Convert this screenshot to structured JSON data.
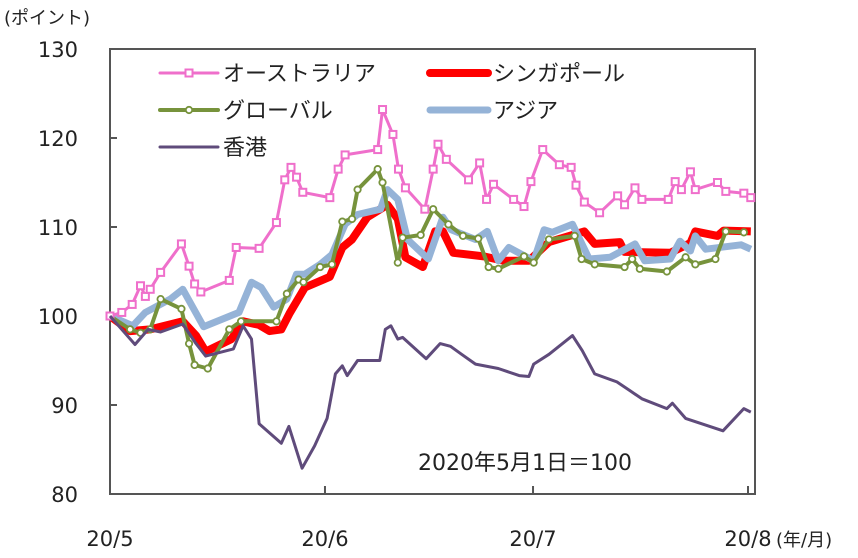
{
  "chart_data": {
    "type": "line",
    "unit_label": "(ポイント)",
    "xlabel": "(年/月)",
    "annotation": "2020年5月1日＝100",
    "xlim": [
      0,
      92
    ],
    "ylim": [
      80,
      130
    ],
    "y_ticks": [
      80,
      90,
      100,
      110,
      120,
      130
    ],
    "x_ticks": [
      {
        "day": 0,
        "label": "20/5"
      },
      {
        "day": 31,
        "label": "20/6"
      },
      {
        "day": 61,
        "label": "20/7"
      },
      {
        "day": 92,
        "label": "20/8"
      }
    ],
    "x_unit": "days since 2020-05-01",
    "legend_placement": "top-left",
    "series": [
      {
        "name": "オーストラリア",
        "color": "#ef6fcb",
        "marker": "square",
        "points": [
          [
            0,
            100
          ],
          [
            1.7,
            100.4
          ],
          [
            3.2,
            101.3
          ],
          [
            4.4,
            103.4
          ],
          [
            5.1,
            102.2
          ],
          [
            5.8,
            103.0
          ],
          [
            7.3,
            104.9
          ],
          [
            10.3,
            108.1
          ],
          [
            11.4,
            105.6
          ],
          [
            12.2,
            103.6
          ],
          [
            13.1,
            102.7
          ],
          [
            17.2,
            104.0
          ],
          [
            18.2,
            107.7
          ],
          [
            21.5,
            107.6
          ],
          [
            24.0,
            110.5
          ],
          [
            25.2,
            115.3
          ],
          [
            26.1,
            116.7
          ],
          [
            26.9,
            115.6
          ],
          [
            27.8,
            113.9
          ],
          [
            31.7,
            113.3
          ],
          [
            32.9,
            116.5
          ],
          [
            33.9,
            118.1
          ],
          [
            38.6,
            118.7
          ],
          [
            39.3,
            123.2
          ],
          [
            40.8,
            120.4
          ],
          [
            41.6,
            116.5
          ],
          [
            42.6,
            114.4
          ],
          [
            45.4,
            112.0
          ],
          [
            46.6,
            116.5
          ],
          [
            47.3,
            119.3
          ],
          [
            48.5,
            117.6
          ],
          [
            51.7,
            115.3
          ],
          [
            53.3,
            117.2
          ],
          [
            54.3,
            113.1
          ],
          [
            55.3,
            114.8
          ],
          [
            58.2,
            113.1
          ],
          [
            59.7,
            112.3
          ],
          [
            60.7,
            115.1
          ],
          [
            62.4,
            118.7
          ],
          [
            64.8,
            117.0
          ],
          [
            66.5,
            116.7
          ],
          [
            67.2,
            114.7
          ],
          [
            68.4,
            112.8
          ],
          [
            70.6,
            111.6
          ],
          [
            73.2,
            113.5
          ],
          [
            74.2,
            112.5
          ],
          [
            75.7,
            114.4
          ],
          [
            76.7,
            113.1
          ],
          [
            80.5,
            113.1
          ],
          [
            81.5,
            115.1
          ],
          [
            82.4,
            114.2
          ],
          [
            83.7,
            116.2
          ],
          [
            84.4,
            114.2
          ],
          [
            87.6,
            115.0
          ],
          [
            88.8,
            114.0
          ],
          [
            91.4,
            113.8
          ],
          [
            92.4,
            113.3
          ]
        ]
      },
      {
        "name": "シンガポール",
        "color": "#ff0000",
        "marker": "none",
        "points": [
          [
            0,
            100
          ],
          [
            2.9,
            98.3
          ],
          [
            5.8,
            98.5
          ],
          [
            10.5,
            99.4
          ],
          [
            12.4,
            97.8
          ],
          [
            13.8,
            96.0
          ],
          [
            17.5,
            97.4
          ],
          [
            19.2,
            99.4
          ],
          [
            21.5,
            99.0
          ],
          [
            23.0,
            98.3
          ],
          [
            24.7,
            98.5
          ],
          [
            25.9,
            100.3
          ],
          [
            28.1,
            103.2
          ],
          [
            31.7,
            104.4
          ],
          [
            33.5,
            107.7
          ],
          [
            34.9,
            108.6
          ],
          [
            37.1,
            111.1
          ],
          [
            40.0,
            112.5
          ],
          [
            41.5,
            110.9
          ],
          [
            42.6,
            106.6
          ],
          [
            45.1,
            105.5
          ],
          [
            46.9,
            109.5
          ],
          [
            48.0,
            109.5
          ],
          [
            49.5,
            107.1
          ],
          [
            53.9,
            106.7
          ],
          [
            56.8,
            106.2
          ],
          [
            60.4,
            106.2
          ],
          [
            63.3,
            108.3
          ],
          [
            68.4,
            109.5
          ],
          [
            69.9,
            108.1
          ],
          [
            73.5,
            108.3
          ],
          [
            74.2,
            107.2
          ],
          [
            80.8,
            107.1
          ],
          [
            83.7,
            108.2
          ],
          [
            84.4,
            109.5
          ],
          [
            87.6,
            109.0
          ],
          [
            88.5,
            109.6
          ],
          [
            92.4,
            109.5
          ]
        ]
      },
      {
        "name": "グローバル",
        "color": "#77933c",
        "marker": "circle",
        "points": [
          [
            0,
            100
          ],
          [
            2.9,
            98.5
          ],
          [
            4.4,
            98.1
          ],
          [
            5.8,
            98.5
          ],
          [
            7.3,
            101.9
          ],
          [
            10.3,
            100.8
          ],
          [
            11.4,
            96.9
          ],
          [
            12.2,
            94.5
          ],
          [
            14.1,
            94.1
          ],
          [
            17.2,
            98.5
          ],
          [
            18.9,
            99.4
          ],
          [
            24.0,
            99.4
          ],
          [
            25.5,
            102.5
          ],
          [
            27.2,
            104.1
          ],
          [
            27.9,
            103.8
          ],
          [
            30.3,
            105.5
          ],
          [
            32.0,
            105.8
          ],
          [
            33.5,
            110.6
          ],
          [
            34.9,
            110.9
          ],
          [
            35.7,
            114.2
          ],
          [
            38.6,
            116.5
          ],
          [
            39.3,
            115.0
          ],
          [
            41.5,
            106.0
          ],
          [
            42.2,
            108.8
          ],
          [
            44.8,
            109.1
          ],
          [
            46.6,
            112.0
          ],
          [
            48.8,
            110.3
          ],
          [
            50.9,
            109.0
          ],
          [
            53.1,
            108.7
          ],
          [
            54.6,
            105.5
          ],
          [
            56.0,
            105.3
          ],
          [
            59.7,
            106.7
          ],
          [
            61.1,
            106.0
          ],
          [
            63.3,
            108.6
          ],
          [
            67.0,
            109.0
          ],
          [
            68.0,
            106.4
          ],
          [
            69.9,
            105.8
          ],
          [
            74.2,
            105.5
          ],
          [
            75.3,
            106.4
          ],
          [
            76.4,
            105.3
          ],
          [
            80.3,
            105.0
          ],
          [
            83.0,
            106.6
          ],
          [
            84.4,
            105.8
          ],
          [
            87.3,
            106.4
          ],
          [
            88.8,
            109.5
          ],
          [
            91.4,
            109.4
          ]
        ]
      },
      {
        "name": "アジア",
        "color": "#95b3d7",
        "marker": "none",
        "points": [
          [
            0,
            100
          ],
          [
            3.3,
            98.9
          ],
          [
            5.1,
            100.4
          ],
          [
            8.7,
            101.9
          ],
          [
            10.5,
            103.0
          ],
          [
            13.5,
            98.8
          ],
          [
            18.6,
            100.4
          ],
          [
            20.4,
            103.8
          ],
          [
            21.8,
            103.2
          ],
          [
            23.6,
            101.0
          ],
          [
            25.5,
            101.9
          ],
          [
            26.9,
            104.7
          ],
          [
            28.1,
            104.7
          ],
          [
            30.3,
            105.8
          ],
          [
            32.0,
            106.9
          ],
          [
            33.9,
            110.3
          ],
          [
            35.7,
            111.4
          ],
          [
            39.0,
            112.0
          ],
          [
            40.0,
            114.2
          ],
          [
            41.5,
            113.1
          ],
          [
            42.9,
            108.6
          ],
          [
            45.9,
            106.4
          ],
          [
            48.0,
            111.1
          ],
          [
            49.2,
            109.7
          ],
          [
            52.7,
            108.6
          ],
          [
            54.4,
            109.5
          ],
          [
            56.0,
            106.2
          ],
          [
            57.5,
            107.7
          ],
          [
            61.1,
            106.2
          ],
          [
            62.6,
            109.7
          ],
          [
            63.8,
            109.4
          ],
          [
            66.7,
            110.3
          ],
          [
            69.1,
            106.4
          ],
          [
            72.1,
            106.6
          ],
          [
            75.7,
            108.1
          ],
          [
            77.1,
            106.2
          ],
          [
            80.8,
            106.4
          ],
          [
            82.2,
            108.4
          ],
          [
            83.7,
            107.3
          ],
          [
            84.4,
            109.0
          ],
          [
            85.9,
            107.5
          ],
          [
            91.0,
            108.0
          ],
          [
            92.4,
            107.5
          ]
        ]
      },
      {
        "name": "香港",
        "color": "#5f4b7b",
        "marker": "none",
        "points": [
          [
            0,
            100
          ],
          [
            3.6,
            96.8
          ],
          [
            5.5,
            98.5
          ],
          [
            7.3,
            98.2
          ],
          [
            10.5,
            99.1
          ],
          [
            12.4,
            96.9
          ],
          [
            13.8,
            95.5
          ],
          [
            17.8,
            96.3
          ],
          [
            19.2,
            98.9
          ],
          [
            20.4,
            97.4
          ],
          [
            21.5,
            87.9
          ],
          [
            24.7,
            85.7
          ],
          [
            25.8,
            87.6
          ],
          [
            27.7,
            82.9
          ],
          [
            29.5,
            85.4
          ],
          [
            31.3,
            88.5
          ],
          [
            32.5,
            93.5
          ],
          [
            33.5,
            94.4
          ],
          [
            34.2,
            93.3
          ],
          [
            35.7,
            95.0
          ],
          [
            38.9,
            95.0
          ],
          [
            39.7,
            98.5
          ],
          [
            40.5,
            98.9
          ],
          [
            41.5,
            97.4
          ],
          [
            42.2,
            97.6
          ],
          [
            45.6,
            95.2
          ],
          [
            47.6,
            96.9
          ],
          [
            49.1,
            96.6
          ],
          [
            50.7,
            95.7
          ],
          [
            52.7,
            94.6
          ],
          [
            56.0,
            94.1
          ],
          [
            59.0,
            93.3
          ],
          [
            60.4,
            93.2
          ],
          [
            61.1,
            94.6
          ],
          [
            63.3,
            95.7
          ],
          [
            66.7,
            97.8
          ],
          [
            68.1,
            96.1
          ],
          [
            69.9,
            93.5
          ],
          [
            73.1,
            92.6
          ],
          [
            75.0,
            91.6
          ],
          [
            76.7,
            90.7
          ],
          [
            80.3,
            89.6
          ],
          [
            81.1,
            90.2
          ],
          [
            83.0,
            88.5
          ],
          [
            88.4,
            87.1
          ],
          [
            91.4,
            89.6
          ],
          [
            92.4,
            89.2
          ]
        ]
      }
    ]
  }
}
